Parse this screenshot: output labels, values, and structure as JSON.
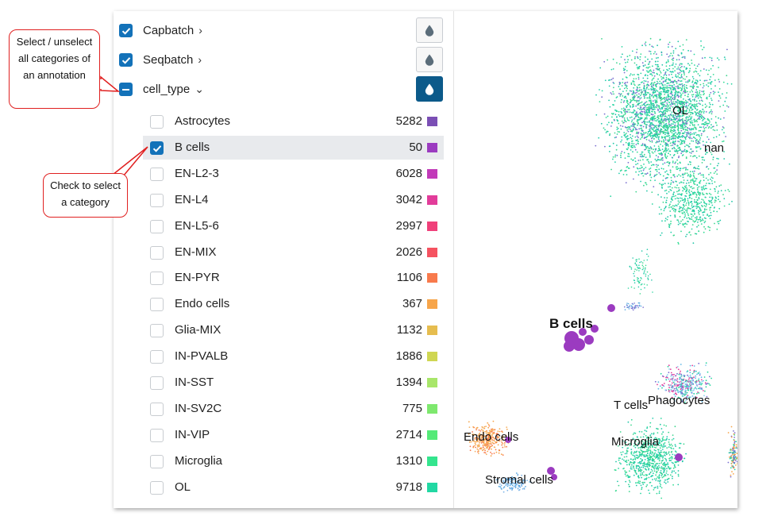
{
  "annotations": [
    {
      "label": "Capbatch",
      "chevron": "›",
      "state": "checked",
      "active": false
    },
    {
      "label": "Seqbatch",
      "chevron": "›",
      "state": "checked",
      "active": false
    },
    {
      "label": "cell_type",
      "chevron": "⌄",
      "state": "indeterminate",
      "active": true
    }
  ],
  "categories": [
    {
      "name": "Astrocytes",
      "count": "5282",
      "color": "#7b4fb5",
      "checked": false
    },
    {
      "name": "B cells",
      "count": "50",
      "color": "#9b3bc0",
      "checked": true
    },
    {
      "name": "EN-L2-3",
      "count": "6028",
      "color": "#c23ab9",
      "checked": false
    },
    {
      "name": "EN-L4",
      "count": "3042",
      "color": "#e23c9a",
      "checked": false
    },
    {
      "name": "EN-L5-6",
      "count": "2997",
      "color": "#f0407a",
      "checked": false
    },
    {
      "name": "EN-MIX",
      "count": "2026",
      "color": "#f55260",
      "checked": false
    },
    {
      "name": "EN-PYR",
      "count": "1106",
      "color": "#f87a4c",
      "checked": false
    },
    {
      "name": "Endo cells",
      "count": "367",
      "color": "#f7a54a",
      "checked": false
    },
    {
      "name": "Glia-MIX",
      "count": "1132",
      "color": "#e6bd4f",
      "checked": false
    },
    {
      "name": "IN-PVALB",
      "count": "1886",
      "color": "#cfd652",
      "checked": false
    },
    {
      "name": "IN-SST",
      "count": "1394",
      "color": "#a8e66a",
      "checked": false
    },
    {
      "name": "IN-SV2C",
      "count": "775",
      "color": "#7ee86e",
      "checked": false
    },
    {
      "name": "IN-VIP",
      "count": "2714",
      "color": "#55ea78",
      "checked": false
    },
    {
      "name": "Microglia",
      "count": "1310",
      "color": "#34e58e",
      "checked": false
    },
    {
      "name": "OL",
      "count": "9718",
      "color": "#22d8a3",
      "checked": false
    }
  ],
  "embedding_labels": {
    "ol": "OL",
    "nan": "nan",
    "b_cells": "B cells",
    "t_cells": "T cells",
    "phagocytes": "Phagocytes",
    "microglia": "Microglia",
    "endo_cells": "Endo cells",
    "stromal_cells": "Stromal cells"
  },
  "callouts": {
    "select_all": "Select / unselect all categories of an annotation",
    "check_category": "Check to select a category"
  },
  "icons": {
    "color_by": "water-drop-icon",
    "checkbox_checked": "checkmark-icon",
    "expand": "chevron-icon"
  },
  "colors": {
    "accent": "#1372b9",
    "active_button": "#0c5a8a",
    "callout_border": "#e02020"
  }
}
